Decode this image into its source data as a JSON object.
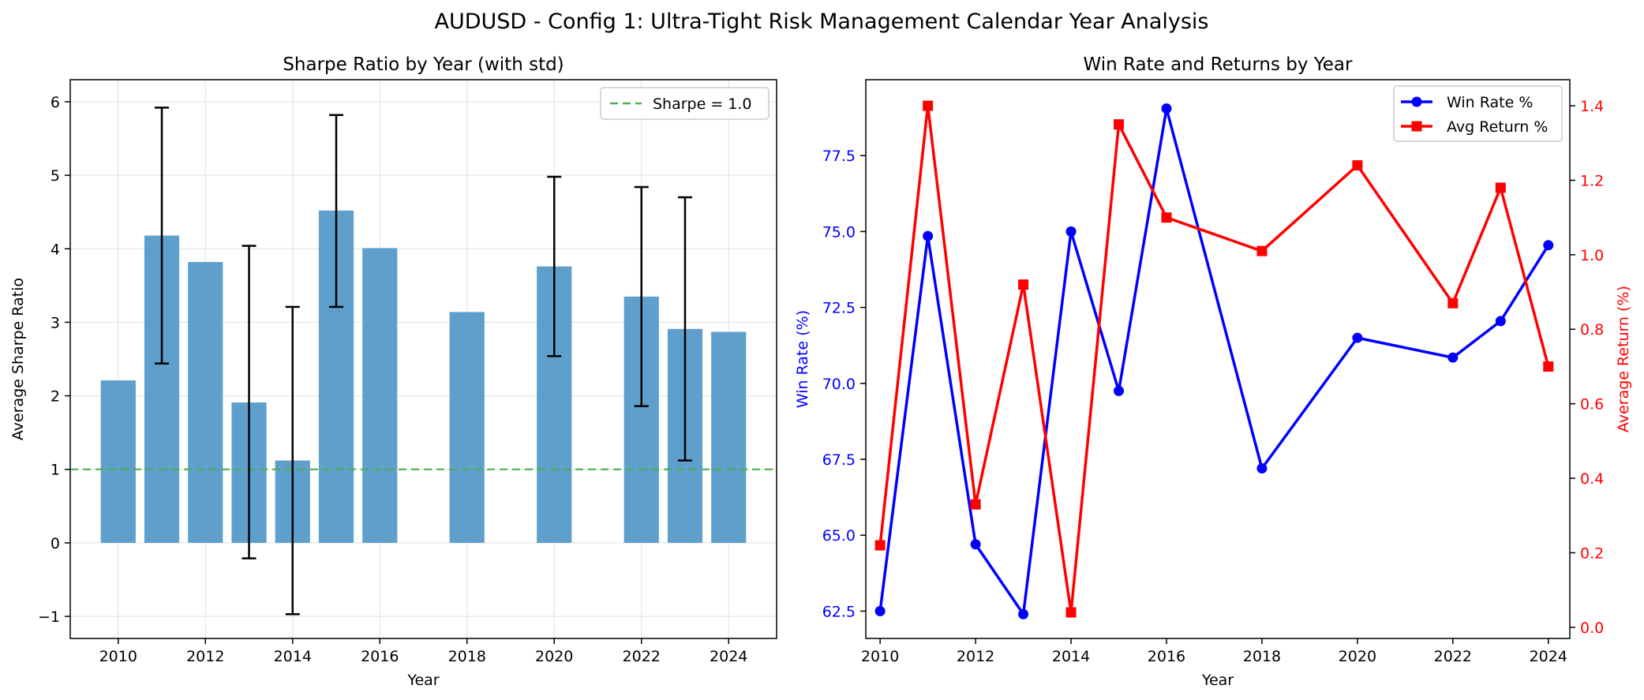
{
  "figure": {
    "suptitle": "AUDUSD - Config 1: Ultra-Tight Risk Management Calendar Year Analysis"
  },
  "colors": {
    "bar": "#5f9fcc",
    "reference_line": "#4caf50",
    "win_rate": "#0000ff",
    "avg_return": "#ff0000",
    "axis": "#000000",
    "grid": "#e0e0e0"
  },
  "chart_data": [
    {
      "type": "bar",
      "title": "Sharpe Ratio by Year (with std)",
      "xlabel": "Year",
      "ylabel": "Average Sharpe Ratio",
      "xlim": [
        2008.9,
        2025.1
      ],
      "ylim": [
        -1.3,
        6.3
      ],
      "xticks": [
        2010,
        2012,
        2014,
        2016,
        2018,
        2020,
        2022,
        2024
      ],
      "yticks": [
        -1,
        0,
        1,
        2,
        3,
        4,
        5,
        6
      ],
      "ytick_labels": [
        "−1",
        "0",
        "1",
        "2",
        "3",
        "4",
        "5",
        "6"
      ],
      "grid": true,
      "legend_position": "top-right",
      "x": [
        2010,
        2011,
        2012,
        2013,
        2014,
        2015,
        2016,
        2018,
        2020,
        2022,
        2023,
        2024
      ],
      "values": [
        2.21,
        4.18,
        3.82,
        1.91,
        1.12,
        4.52,
        4.01,
        3.14,
        3.76,
        3.35,
        2.91,
        2.87
      ],
      "error_bars": [
        {
          "x": 2011,
          "low": 2.44,
          "high": 5.92
        },
        {
          "x": 2013,
          "low": -0.21,
          "high": 4.04
        },
        {
          "x": 2014,
          "low": -0.97,
          "high": 3.21
        },
        {
          "x": 2015,
          "low": 3.21,
          "high": 5.82
        },
        {
          "x": 2020,
          "low": 2.54,
          "high": 4.98
        },
        {
          "x": 2022,
          "low": 1.86,
          "high": 4.84
        },
        {
          "x": 2023,
          "low": 1.12,
          "high": 4.7
        }
      ],
      "reference_line": {
        "y": 1.0,
        "label": "Sharpe = 1.0"
      }
    },
    {
      "type": "line",
      "title": "Win Rate and Returns by Year",
      "xlabel": "Year",
      "ylabel_left": "Win Rate (%)",
      "ylabel_right": "Average Return (%)",
      "xlim": [
        2009.7,
        2024.45
      ],
      "ylim_left": [
        61.6,
        80.0
      ],
      "ylim_right": [
        -0.03,
        1.47
      ],
      "xticks": [
        2010,
        2012,
        2014,
        2016,
        2018,
        2020,
        2022,
        2024
      ],
      "yticks_left": [
        "62.5",
        "65.0",
        "67.5",
        "70.0",
        "72.5",
        "75.0",
        "77.5"
      ],
      "yticks_right": [
        "0.0",
        "0.2",
        "0.4",
        "0.6",
        "0.8",
        "1.0",
        "1.2",
        "1.4"
      ],
      "legend_position": "top-right",
      "x": [
        2010,
        2011,
        2012,
        2013,
        2014,
        2015,
        2016,
        2018,
        2020,
        2022,
        2023,
        2024
      ],
      "series": [
        {
          "name": "Win Rate %",
          "axis": "left",
          "marker": "circle",
          "values": [
            62.5,
            74.85,
            64.7,
            62.4,
            75.0,
            69.75,
            79.05,
            67.2,
            71.5,
            70.85,
            72.05,
            74.55
          ]
        },
        {
          "name": "Avg Return %",
          "axis": "right",
          "marker": "square",
          "values": [
            0.22,
            1.4,
            0.33,
            0.92,
            0.04,
            1.35,
            1.1,
            1.01,
            1.24,
            0.87,
            1.18,
            0.7
          ]
        }
      ]
    }
  ]
}
